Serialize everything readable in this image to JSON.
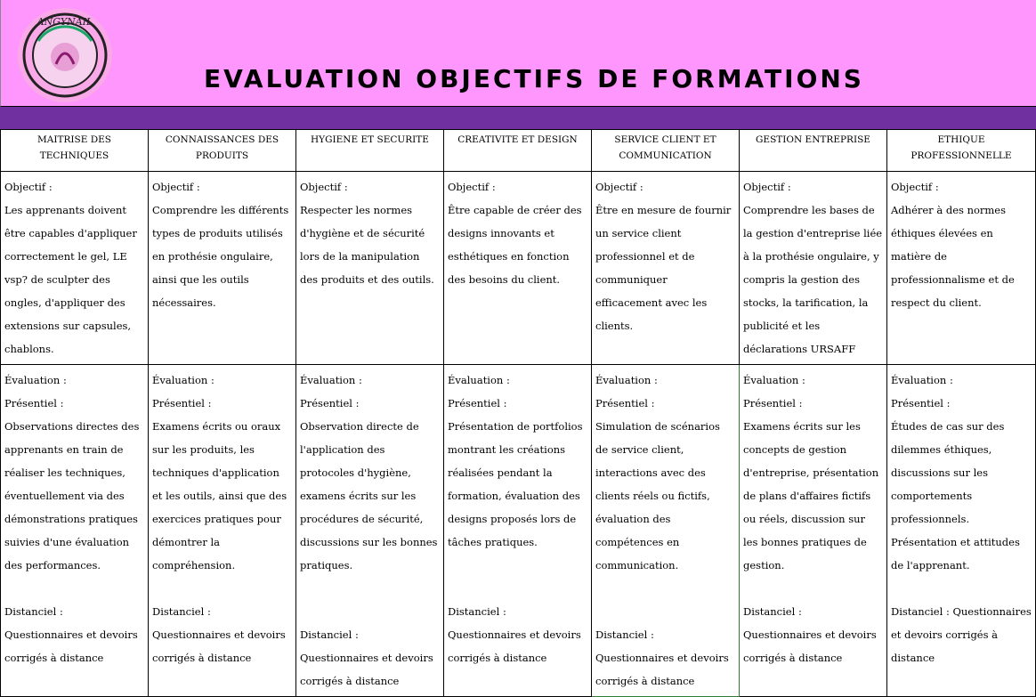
{
  "header": {
    "title": "EVALUATION OBJECTIFS DE FORMATIONS",
    "logo_text": "ANGYNAIL",
    "colors": {
      "header_bg": "#fe96fe",
      "band": "#7030a0"
    }
  },
  "labels": {
    "objectif": "Objectif :",
    "evaluation": "Évaluation :",
    "presentiel": "Présentiel :"
  },
  "columns": [
    {
      "title": "MAITRISE DES TECHNIQUES",
      "objectif": "Les apprenants doivent être capables d'appliquer correctement le gel, LE vsp? de sculpter des ongles, d'appliquer des extensions sur capsules, chablons.",
      "presentiel": "Observations directes des apprenants en train de réaliser les techniques, éventuellement via des démonstrations pratiques suivies d'une évaluation des performances.",
      "distanciel": "Distanciel : Questionnaires et devoirs corrigés à distance",
      "gap": 1
    },
    {
      "title": "CONNAISSANCES DES PRODUITS",
      "objectif": "Comprendre les différents types de produits utilisés en prothésie ongulaire, ainsi que les outils nécessaires.",
      "presentiel": "Examens écrits ou oraux sur les produits, les techniques d'application et les outils, ainsi que des exercices pratiques pour démontrer la compréhension.",
      "distanciel": "Distanciel : Questionnaires et devoirs corrigés à distance",
      "gap": 1
    },
    {
      "title": "HYGIENE ET SECURITE",
      "objectif": "Respecter les normes d'hygiène et de sécurité lors de la manipulation des produits et des outils.",
      "presentiel": "Observation directe de l'application des protocoles d'hygiène, examens écrits sur les procédures de sécurité, discussions sur les bonnes pratiques.",
      "distanciel": "Distanciel : Questionnaires et devoirs corrigés à distance",
      "gap": 2
    },
    {
      "title": "CREATIVITE ET DESIGN",
      "objectif": "Être capable de créer des designs innovants et esthétiques en fonction des besoins du client.",
      "presentiel": "Présentation de portfolios montrant les créations réalisées pendant la formation, évaluation des designs proposés lors de tâches pratiques.",
      "distanciel": "Distanciel : Questionnaires et devoirs corrigés à distance",
      "gap": 2
    },
    {
      "title": "SERVICE CLIENT ET COMMUNICATION",
      "objectif": "Être en mesure de fournir un service client professionnel et de communiquer efficacement avec les clients.",
      "presentiel": "Simulation de scénarios de service client, interactions avec des clients réels ou fictifs, évaluation des compétences en communication.",
      "distanciel": "Distanciel : Questionnaires et devoirs corrigés à distance",
      "gap": 2
    },
    {
      "title": "GESTION ENTREPRISE",
      "objectif": "Comprendre les bases de la gestion d'entreprise liée à la prothésie ongulaire, y compris la gestion des stocks, la tarification, la publicité et les déclarations URSAFF",
      "presentiel": "Examens écrits sur les concepts de gestion d'entreprise, présentation de plans d'affaires fictifs ou réels, discussion sur les bonnes pratiques de gestion.",
      "distanciel": "Distanciel : Questionnaires et devoirs corrigés à distance",
      "gap": 1
    },
    {
      "title": "ETHIQUE PROFESSIONNELLE",
      "objectif": "Adhérer à des normes éthiques élevées en matière de professionnalisme et de respect du client.",
      "presentiel": "Études de cas sur des dilemmes éthiques, discussions sur les comportements professionnels. Présentation et attitudes de l'apprenant.",
      "distanciel": "Distanciel : Questionnaires et devoirs corrigés à distance",
      "gap": 1
    }
  ]
}
